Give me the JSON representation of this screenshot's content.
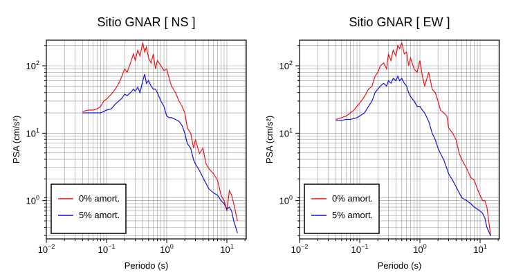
{
  "chart_data": [
    {
      "type": "line",
      "title": "Sitio GNAR [ NS ]",
      "x_label": "Periodo (s)",
      "y_label": "PSA (cm/s²)",
      "log_x": true,
      "log_y": true,
      "grid": true,
      "legend": "lower left",
      "xlim": [
        0.01,
        21
      ],
      "ylim": [
        0.27,
        240
      ],
      "xticks": [
        {
          "value": 0.01,
          "label": "10",
          "sup": "−2"
        },
        {
          "value": 0.1,
          "label": "10",
          "sup": "−1"
        },
        {
          "value": 1,
          "label": "10",
          "sup": "0"
        },
        {
          "value": 10,
          "label": "10",
          "sup": "1"
        }
      ],
      "yticks": [
        {
          "value": 1,
          "label": "10",
          "sup": "0"
        },
        {
          "value": 10,
          "label": "10",
          "sup": "1"
        },
        {
          "value": 100,
          "label": "10",
          "sup": "2"
        }
      ],
      "x": [
        0.04,
        0.05,
        0.06,
        0.07,
        0.08,
        0.09,
        0.1,
        0.12,
        0.14,
        0.16,
        0.18,
        0.2,
        0.22,
        0.25,
        0.28,
        0.3,
        0.33,
        0.36,
        0.4,
        0.43,
        0.46,
        0.5,
        0.55,
        0.6,
        0.65,
        0.7,
        0.8,
        0.9,
        1.0,
        1.1,
        1.2,
        1.4,
        1.6,
        1.8,
        2.0,
        2.2,
        2.5,
        2.8,
        3.0,
        3.5,
        4.0,
        4.5,
        5.0,
        6.0,
        7.0,
        8.0,
        9.0,
        10,
        11,
        12,
        13,
        15
      ],
      "series": [
        {
          "name": "0% amort.",
          "color": "#ee1111",
          "values": [
            21,
            22,
            22,
            23,
            25,
            30,
            32,
            38,
            45,
            55,
            70,
            90,
            80,
            110,
            150,
            120,
            170,
            140,
            220,
            160,
            190,
            130,
            110,
            150,
            90,
            120,
            100,
            85,
            90,
            65,
            50,
            40,
            30,
            25,
            20,
            12,
            10,
            6,
            8,
            5,
            6,
            3.5,
            3,
            2.5,
            2,
            1.2,
            1.0,
            0.7,
            1.4,
            1.2,
            0.9,
            0.5
          ]
        },
        {
          "name": "5% amort.",
          "color": "#1111dd",
          "values": [
            20,
            20,
            20,
            20,
            20,
            21,
            22,
            23,
            27,
            30,
            33,
            38,
            36,
            40,
            45,
            42,
            48,
            40,
            60,
            75,
            55,
            60,
            50,
            45,
            45,
            40,
            30,
            25,
            18,
            17,
            17,
            16,
            15,
            13,
            10,
            7,
            6,
            4,
            3.5,
            2.8,
            2.2,
            1.8,
            1.5,
            1.3,
            1.2,
            1.0,
            0.9,
            0.75,
            0.8,
            0.7,
            0.5,
            0.33
          ]
        }
      ]
    },
    {
      "type": "line",
      "title": "Sitio GNAR [ EW ]",
      "x_label": "Periodo (s)",
      "y_label": "PSA (cm/s²)",
      "log_x": true,
      "log_y": true,
      "grid": true,
      "legend": "lower left",
      "xlim": [
        0.01,
        21
      ],
      "ylim": [
        0.27,
        240
      ],
      "xticks": [
        {
          "value": 0.01,
          "label": "10",
          "sup": "−2"
        },
        {
          "value": 0.1,
          "label": "10",
          "sup": "−1"
        },
        {
          "value": 1,
          "label": "10",
          "sup": "0"
        },
        {
          "value": 10,
          "label": "10",
          "sup": "1"
        }
      ],
      "yticks": [
        {
          "value": 1,
          "label": "10",
          "sup": "0"
        },
        {
          "value": 10,
          "label": "10",
          "sup": "1"
        },
        {
          "value": 100,
          "label": "10",
          "sup": "2"
        }
      ],
      "x": [
        0.04,
        0.05,
        0.06,
        0.07,
        0.08,
        0.09,
        0.1,
        0.12,
        0.14,
        0.16,
        0.18,
        0.2,
        0.22,
        0.25,
        0.28,
        0.3,
        0.33,
        0.36,
        0.4,
        0.43,
        0.46,
        0.5,
        0.55,
        0.6,
        0.65,
        0.7,
        0.8,
        0.9,
        1.0,
        1.1,
        1.2,
        1.4,
        1.6,
        1.8,
        2.0,
        2.2,
        2.5,
        2.8,
        3.0,
        3.5,
        4.0,
        4.5,
        5.0,
        6.0,
        7.0,
        8.0,
        9.0,
        10,
        11,
        12,
        13,
        15
      ],
      "series": [
        {
          "name": "0% amort.",
          "color": "#ee1111",
          "values": [
            16,
            17,
            18,
            20,
            22,
            25,
            28,
            35,
            45,
            50,
            70,
            80,
            100,
            110,
            90,
            150,
            120,
            170,
            140,
            200,
            180,
            220,
            150,
            160,
            100,
            130,
            90,
            80,
            120,
            70,
            50,
            80,
            45,
            40,
            30,
            22,
            20,
            18,
            12,
            10,
            8,
            5,
            4,
            3,
            2.2,
            2.0,
            1.5,
            1.2,
            1.0,
            1.0,
            0.8,
            0.3
          ]
        },
        {
          "name": "5% amort.",
          "color": "#1111dd",
          "values": [
            15.5,
            15.5,
            16,
            16,
            16.5,
            17,
            18,
            20,
            25,
            30,
            40,
            45,
            50,
            55,
            50,
            60,
            55,
            65,
            60,
            70,
            60,
            65,
            55,
            50,
            40,
            35,
            30,
            25,
            25,
            22,
            20,
            15,
            10,
            8,
            6,
            5,
            4,
            3,
            2.5,
            2,
            1.6,
            1.3,
            1.1,
            1.0,
            0.9,
            0.8,
            0.75,
            0.7,
            0.65,
            0.55,
            0.4,
            0.3
          ]
        }
      ]
    }
  ]
}
